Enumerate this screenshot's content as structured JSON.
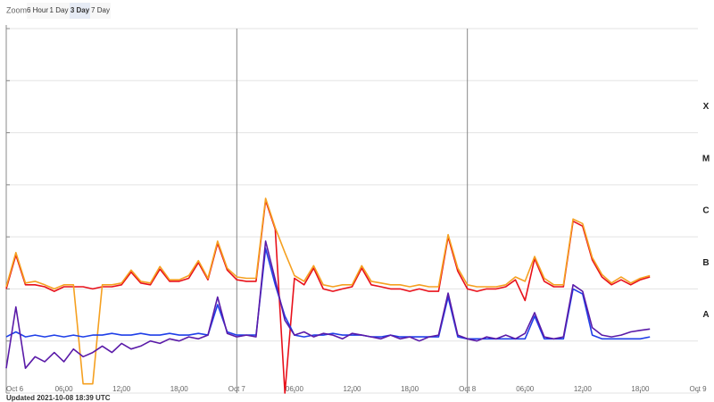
{
  "zoom": {
    "label": "Zoom",
    "buttons": [
      "6 Hour",
      "1 Day",
      "3 Day",
      "7 Day"
    ],
    "selected": 2
  },
  "updated": "Updated 2021-10-08 18:39 UTC",
  "chart_data": {
    "type": "line",
    "log_scale": true,
    "x": [
      0,
      1,
      2,
      3,
      4,
      5,
      6,
      7,
      8,
      9,
      10,
      11,
      12,
      13,
      14,
      15,
      16,
      17,
      18,
      19,
      20,
      21,
      22,
      23,
      24,
      25,
      26,
      27,
      28,
      29,
      30,
      31,
      32,
      33,
      34,
      35,
      36,
      37,
      38,
      39,
      40,
      41,
      42,
      43,
      44,
      45,
      46,
      47,
      48,
      49,
      50,
      51,
      52,
      53,
      54,
      55,
      56,
      57,
      58,
      59,
      60,
      61,
      62,
      63,
      64,
      65,
      66,
      67
    ],
    "xlim": [
      0,
      72
    ],
    "xticks": [
      {
        "value": 0,
        "label": "Oct 6"
      },
      {
        "value": 6,
        "label": "06:00"
      },
      {
        "value": 12,
        "label": "12:00"
      },
      {
        "value": 18,
        "label": "18:00"
      },
      {
        "value": 24,
        "label": "Oct 7"
      },
      {
        "value": 30,
        "label": "06:00"
      },
      {
        "value": 36,
        "label": "12:00"
      },
      {
        "value": 42,
        "label": "18:00"
      },
      {
        "value": 48,
        "label": "Oct 8"
      },
      {
        "value": 54,
        "label": "06:00"
      },
      {
        "value": 60,
        "label": "12:00"
      },
      {
        "value": 66,
        "label": "18:00"
      },
      {
        "value": 72,
        "label": "Oct 9"
      }
    ],
    "ylim": [
      1e-09,
      0.01
    ],
    "yticks": [
      1e-09,
      1e-08,
      1e-07,
      1e-06,
      1e-05,
      0.0001,
      0.001,
      0.01
    ],
    "classes": [
      {
        "label": "X",
        "value": 0.0001
      },
      {
        "label": "M",
        "value": 1e-05
      },
      {
        "label": "C",
        "value": 1e-06
      },
      {
        "label": "B",
        "value": 1e-07
      },
      {
        "label": "A",
        "value": 1e-08
      }
    ],
    "series": [
      {
        "color": "#e8101a",
        "values": [
          1e-07,
          4.5e-07,
          1.2e-07,
          1.2e-07,
          1.1e-07,
          9e-08,
          1.1e-07,
          1.1e-07,
          1.1e-07,
          1e-07,
          1.1e-07,
          1.1e-07,
          1.2e-07,
          2.1e-07,
          1.3e-07,
          1.2e-07,
          2.4e-07,
          1.4e-07,
          1.4e-07,
          1.6e-07,
          3.2e-07,
          1.5e-07,
          7.5e-07,
          2.3e-07,
          1.5e-07,
          1.4e-07,
          1.4e-07,
          5e-06,
          1.4e-06,
          1e-09,
          1.6e-07,
          1.2e-07,
          2.5e-07,
          1e-07,
          9e-08,
          1e-07,
          1.1e-07,
          2.5e-07,
          1.2e-07,
          1.1e-07,
          1e-07,
          1e-07,
          9e-08,
          1e-07,
          9e-08,
          9e-08,
          1e-06,
          2.2e-07,
          1e-07,
          9e-08,
          1e-07,
          1e-07,
          1.1e-07,
          1.5e-07,
          6e-08,
          3.8e-07,
          1.4e-07,
          1.1e-07,
          1.1e-07,
          2e-06,
          1.6e-06,
          3.6e-07,
          1.7e-07,
          1.2e-07,
          1.5e-07,
          1.2e-07,
          1.5e-07,
          1.7e-07
        ]
      },
      {
        "color": "#f5a020",
        "values": [
          1.1e-07,
          5e-07,
          1.3e-07,
          1.4e-07,
          1.2e-07,
          1e-07,
          1.2e-07,
          1.2e-07,
          1.5e-09,
          1.5e-09,
          1.2e-07,
          1.2e-07,
          1.3e-07,
          2.3e-07,
          1.4e-07,
          1.3e-07,
          2.7e-07,
          1.5e-07,
          1.5e-07,
          1.8e-07,
          3.5e-07,
          1.6e-07,
          8.3e-07,
          2.5e-07,
          1.7e-07,
          1.6e-07,
          1.6e-07,
          5.5e-06,
          1.5e-06,
          5e-07,
          1.8e-07,
          1.4e-07,
          2.8e-07,
          1.2e-07,
          1.1e-07,
          1.2e-07,
          1.2e-07,
          2.8e-07,
          1.4e-07,
          1.3e-07,
          1.2e-07,
          1.2e-07,
          1.1e-07,
          1.2e-07,
          1.1e-07,
          1.1e-07,
          1.1e-06,
          2.5e-07,
          1.2e-07,
          1.1e-07,
          1.1e-07,
          1.1e-07,
          1.2e-07,
          1.7e-07,
          1.4e-07,
          4.2e-07,
          1.6e-07,
          1.2e-07,
          1.2e-07,
          2.2e-06,
          1.8e-06,
          4e-07,
          1.9e-07,
          1.3e-07,
          1.7e-07,
          1.3e-07,
          1.6e-07,
          1.8e-07
        ]
      },
      {
        "color": "#1f3fe8",
        "values": [
          1.2e-08,
          1.5e-08,
          1.2e-08,
          1.3e-08,
          1.2e-08,
          1.3e-08,
          1.2e-08,
          1.3e-08,
          1.2e-08,
          1.3e-08,
          1.3e-08,
          1.4e-08,
          1.3e-08,
          1.3e-08,
          1.4e-08,
          1.3e-08,
          1.3e-08,
          1.4e-08,
          1.3e-08,
          1.3e-08,
          1.4e-08,
          1.3e-08,
          5e-08,
          1.5e-08,
          1.3e-08,
          1.3e-08,
          1.3e-08,
          6e-07,
          1.2e-07,
          3e-08,
          1.3e-08,
          1.2e-08,
          1.3e-08,
          1.3e-08,
          1.4e-08,
          1.3e-08,
          1.3e-08,
          1.3e-08,
          1.2e-08,
          1.2e-08,
          1.3e-08,
          1.2e-08,
          1.2e-08,
          1.2e-08,
          1.2e-08,
          1.2e-08,
          7e-08,
          1.2e-08,
          1.1e-08,
          1.1e-08,
          1.1e-08,
          1.1e-08,
          1.1e-08,
          1.1e-08,
          1.1e-08,
          3e-08,
          1.1e-08,
          1.1e-08,
          1.1e-08,
          1e-07,
          8e-08,
          1.3e-08,
          1.1e-08,
          1.1e-08,
          1.1e-08,
          1.1e-08,
          1.1e-08,
          1.2e-08
        ]
      },
      {
        "color": "#5a1aa8",
        "values": [
          3e-09,
          4.5e-08,
          3e-09,
          5e-09,
          4e-09,
          6e-09,
          4e-09,
          7e-09,
          5e-09,
          6e-09,
          8e-09,
          6e-09,
          9e-09,
          7e-09,
          8e-09,
          1e-08,
          9e-09,
          1.1e-08,
          1e-08,
          1.2e-08,
          1.1e-08,
          1.3e-08,
          7e-08,
          1.4e-08,
          1.2e-08,
          1.3e-08,
          1.2e-08,
          8.3e-07,
          1.5e-07,
          2.5e-08,
          1.3e-08,
          1.5e-08,
          1.2e-08,
          1.4e-08,
          1.3e-08,
          1.1e-08,
          1.4e-08,
          1.3e-08,
          1.2e-08,
          1.1e-08,
          1.3e-08,
          1.1e-08,
          1.2e-08,
          1e-08,
          1.2e-08,
          1.3e-08,
          8.3e-08,
          1.3e-08,
          1.1e-08,
          1e-08,
          1.2e-08,
          1.1e-08,
          1.3e-08,
          1.1e-08,
          1.4e-08,
          3.5e-08,
          1.2e-08,
          1.1e-08,
          1.2e-08,
          1.2e-07,
          9e-08,
          1.8e-08,
          1.3e-08,
          1.2e-08,
          1.3e-08,
          1.5e-08,
          1.6e-08,
          1.7e-08
        ]
      }
    ]
  }
}
